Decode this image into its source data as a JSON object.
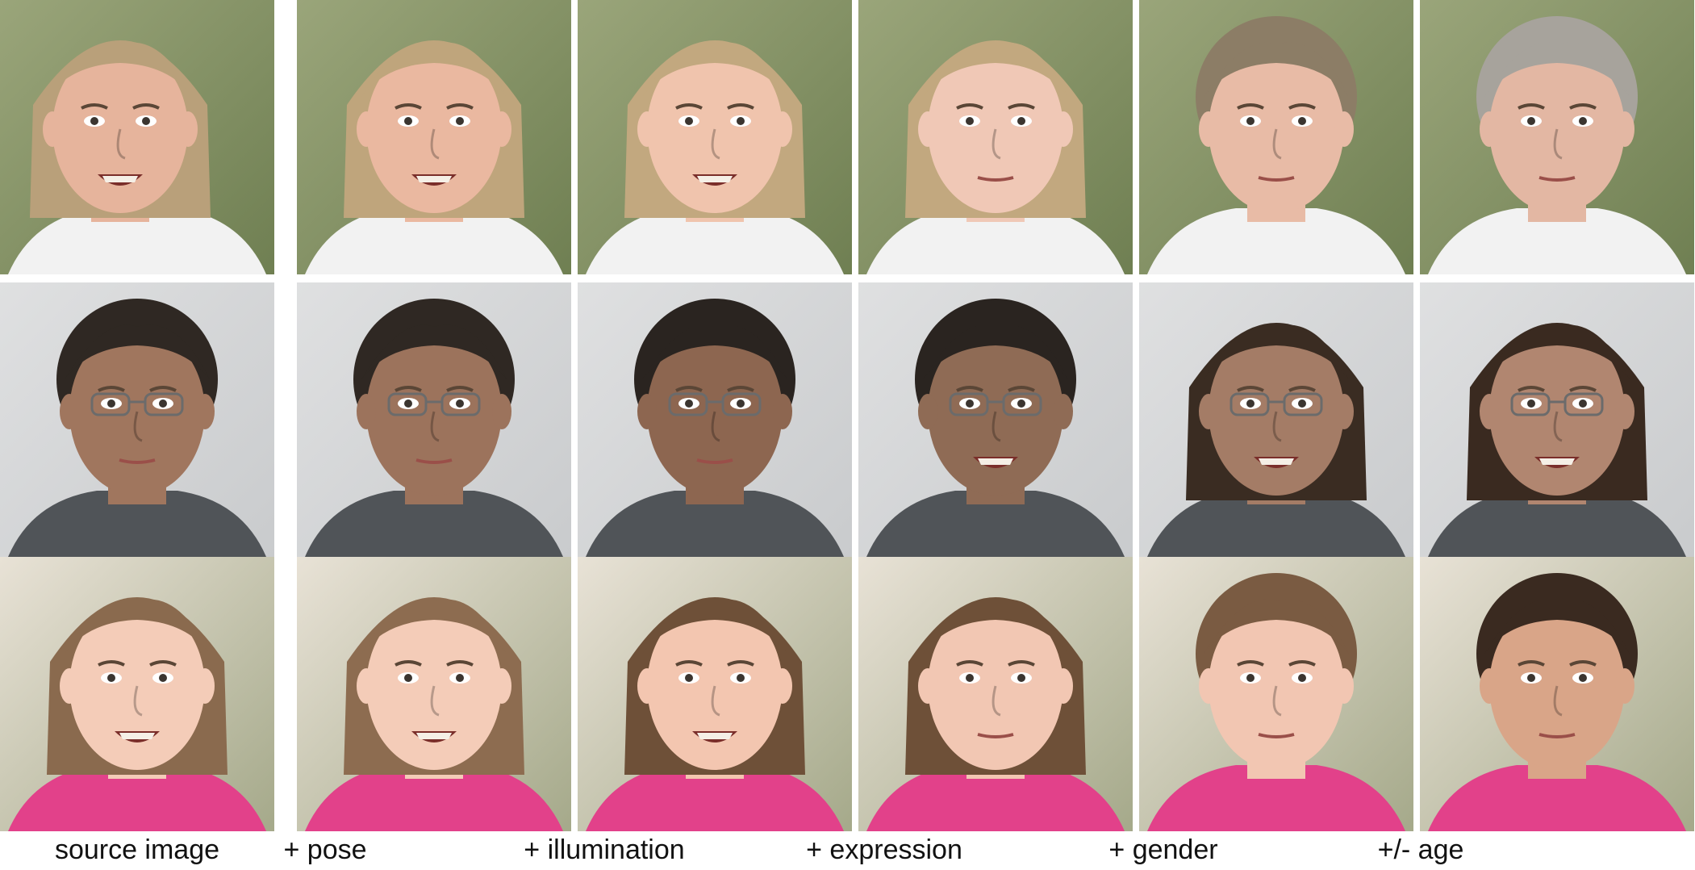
{
  "captions": [
    "source image",
    "+ pose",
    "+ illumination",
    "+ expression",
    "+ gender",
    "+/- age"
  ],
  "rows": [
    {
      "subject": "woman-blonde",
      "bg": "#6f7f52",
      "bg2": "#9aa57a",
      "skin": "#e8b9a2",
      "hair": "#b9a07a",
      "shirt": "#f2f2f2",
      "cells": [
        {
          "hair": "#b9a07a",
          "skin": "#e6b49c",
          "short_hair": false,
          "smile": true,
          "turn": -0.35
        },
        {
          "hair": "#bfa57c",
          "skin": "#eab8a0",
          "short_hair": false,
          "smile": true,
          "turn": 0
        },
        {
          "hair": "#c2a87f",
          "skin": "#f0c4ad",
          "short_hair": false,
          "smile": true,
          "turn": 0
        },
        {
          "hair": "#c2a87f",
          "skin": "#f0c8b6",
          "short_hair": false,
          "smile": false,
          "turn": 0
        },
        {
          "hair": "#8c7d66",
          "skin": "#e8bba6",
          "short_hair": true,
          "smile": false,
          "turn": 0
        },
        {
          "hair": "#a7a39c",
          "skin": "#e3b7a3",
          "short_hair": true,
          "smile": false,
          "turn": 0
        }
      ]
    },
    {
      "subject": "man-glasses",
      "bg": "#c9cbcd",
      "bg2": "#dfe0e1",
      "skin": "#a4785f",
      "hair": "#2f2823",
      "shirt": "#505458",
      "cells": [
        {
          "hair": "#2f2823",
          "skin": "#a0765e",
          "short_hair": true,
          "smile": false,
          "turn": 0
        },
        {
          "hair": "#2f2823",
          "skin": "#9c735c",
          "short_hair": true,
          "smile": false,
          "turn": 0
        },
        {
          "hair": "#2a2420",
          "skin": "#8d6650",
          "short_hair": true,
          "smile": false,
          "turn": 0
        },
        {
          "hair": "#2a2420",
          "skin": "#8f6b55",
          "short_hair": true,
          "smile": true,
          "turn": 0
        },
        {
          "hair": "#3a2c22",
          "skin": "#a47c66",
          "short_hair": false,
          "smile": true,
          "turn": 0
        },
        {
          "hair": "#3a2a20",
          "skin": "#b18670",
          "short_hair": false,
          "smile": true,
          "turn": 0
        }
      ]
    },
    {
      "subject": "girl-child",
      "bg": "#a5a98a",
      "bg2": "#e8e2d6",
      "skin": "#f2c9b5",
      "hair": "#8a6a4e",
      "shirt": "#e2418a",
      "cells": [
        {
          "hair": "#8a6a4e",
          "skin": "#f4ccb8",
          "short_hair": false,
          "smile": true,
          "turn": 0
        },
        {
          "hair": "#8d6c50",
          "skin": "#f4ccb8",
          "short_hair": false,
          "smile": true,
          "turn": 0
        },
        {
          "hair": "#6e5038",
          "skin": "#f3c6b0",
          "short_hair": false,
          "smile": true,
          "turn": 0
        },
        {
          "hair": "#6e5038",
          "skin": "#f2c7b3",
          "short_hair": false,
          "smile": false,
          "turn": 0
        },
        {
          "hair": "#7a5b42",
          "skin": "#f2c6b2",
          "short_hair": true,
          "smile": false,
          "turn": 0
        },
        {
          "hair": "#3a2a20",
          "skin": "#d9a588",
          "short_hair": true,
          "smile": false,
          "turn": 0
        }
      ]
    }
  ]
}
